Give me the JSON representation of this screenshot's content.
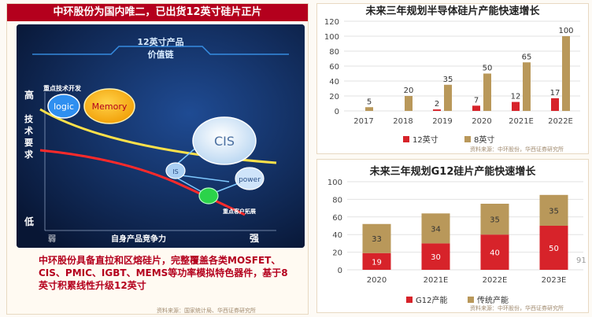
{
  "left": {
    "title": "中环股份为国内唯二，已出货12英寸硅片正片",
    "photo": {
      "banner_line1": "12英寸产品",
      "banner_line2": "价值链",
      "focus_label": "重点技术开发",
      "bubble_logic": "logic",
      "bubble_memory": "Memory",
      "bubble_cis": "CIS",
      "bubble_power": "power",
      "bubble_is": "IS",
      "customer_label": "重点客户拓展",
      "y_high": "高",
      "y_axis": "技术要求",
      "y_low": "低",
      "x_axis": "自身产品竞争力",
      "x_strong": "强",
      "x_weak": "弱"
    },
    "description": "中环股份具备直拉和区熔硅片，完整覆盖各类MOSFET、CIS、PMIC、IGBT、MEMS等功率模拟特色器件，基于8英寸积累线性升级12英寸",
    "source": "资料来源：国家统计局、华西证券研究所"
  },
  "page_number": "91",
  "colors": {
    "red": "#d7232a",
    "gold": "#b9985a",
    "header_red": "#b4001d"
  },
  "chart_data": [
    {
      "type": "bar",
      "title": "未来三年规划半导体硅片产能快速增长",
      "categories": [
        "2017",
        "2018",
        "2019",
        "2020",
        "2021E",
        "2022E"
      ],
      "series": [
        {
          "name": "12英寸",
          "values": [
            null,
            null,
            2,
            7,
            12,
            17
          ],
          "color": "#d7232a"
        },
        {
          "name": "8英寸",
          "values": [
            5,
            20,
            35,
            50,
            65,
            100
          ],
          "color": "#b9985a"
        }
      ],
      "ylim": [
        0,
        120
      ],
      "yticks": [
        0,
        20,
        40,
        60,
        80,
        100,
        120
      ],
      "grid": true,
      "legend": "bottom",
      "source": "资料来源：中环股份，华西证券研究所"
    },
    {
      "type": "bar",
      "title": "未来三年规划G12硅片产能快速增长",
      "categories": [
        "2020",
        "2021E",
        "2022E",
        "2023E"
      ],
      "stacked": true,
      "series": [
        {
          "name": "G12产能",
          "values": [
            19,
            30,
            40,
            50
          ],
          "color": "#d7232a"
        },
        {
          "name": "传统产能",
          "values": [
            33,
            34,
            35,
            35
          ],
          "color": "#b9985a"
        }
      ],
      "ylim": [
        0,
        100
      ],
      "yticks": [
        0,
        20,
        40,
        60,
        80,
        100
      ],
      "grid": true,
      "legend": "bottom",
      "source": "资料来源：中环股份，华西证券研究所"
    }
  ]
}
